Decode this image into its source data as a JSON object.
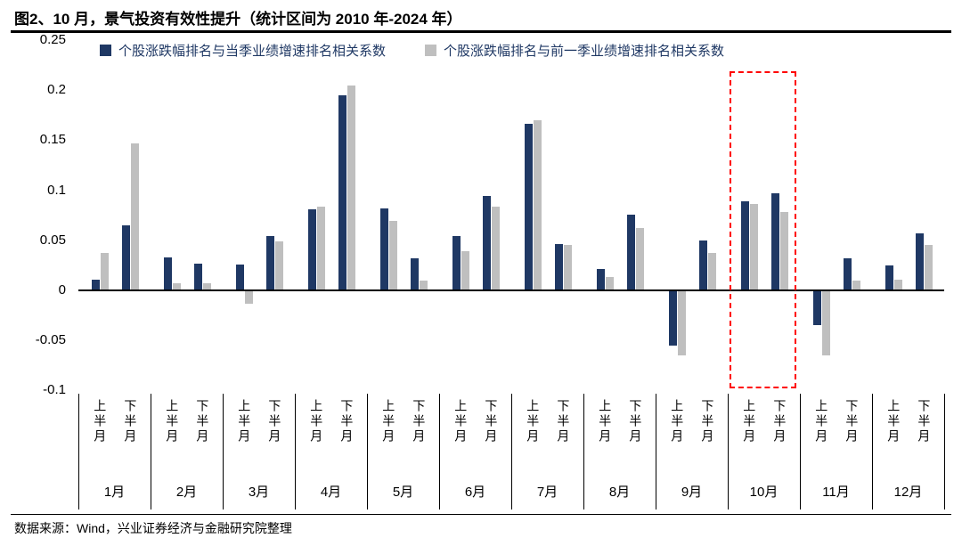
{
  "title": "图2、10 月，景气投资有效性提升（统计区间为 2010 年-2024 年）",
  "footer": {
    "source": "数据来源：Wind，兴业证券经济与金融研究院整理"
  },
  "colors": {
    "series_current": "#1F3864",
    "series_previous": "#BFBFBF",
    "highlight": "#FF0000",
    "axis": "#000000"
  },
  "chart_data": {
    "type": "bar",
    "title": "图2、10 月，景气投资有效性提升（统计区间为 2010 年-2024 年）",
    "months": [
      "1月",
      "2月",
      "3月",
      "4月",
      "5月",
      "6月",
      "7月",
      "8月",
      "9月",
      "10月",
      "11月",
      "12月"
    ],
    "half_labels": [
      "上半月",
      "下半月"
    ],
    "categories": [
      "1月上半月",
      "1月下半月",
      "2月上半月",
      "2月下半月",
      "3月上半月",
      "3月下半月",
      "4月上半月",
      "4月下半月",
      "5月上半月",
      "5月下半月",
      "6月上半月",
      "6月下半月",
      "7月上半月",
      "7月下半月",
      "8月上半月",
      "8月下半月",
      "9月上半月",
      "9月下半月",
      "10月上半月",
      "10月下半月",
      "11月上半月",
      "11月下半月",
      "12月上半月",
      "12月下半月"
    ],
    "series": [
      {
        "name": "个股涨跌幅排名与当季业绩增速排名相关系数",
        "color": "#1F3864",
        "values": [
          0.011,
          0.065,
          0.033,
          0.027,
          0.026,
          0.054,
          0.081,
          0.195,
          0.082,
          0.032,
          0.054,
          0.094,
          0.166,
          0.046,
          0.021,
          0.076,
          -0.055,
          0.05,
          0.089,
          0.097,
          -0.035,
          0.032,
          0.025,
          0.057
        ]
      },
      {
        "name": "个股涨跌幅排名与前一季业绩增速排名相关系数",
        "color": "#BFBFBF",
        "values": [
          0.037,
          0.147,
          0.007,
          0.007,
          -0.013,
          0.049,
          0.084,
          0.205,
          0.069,
          0.01,
          0.039,
          0.084,
          0.17,
          0.045,
          0.013,
          0.062,
          -0.065,
          0.037,
          0.086,
          0.078,
          -0.065,
          0.01,
          0.011,
          0.045
        ]
      }
    ],
    "ylim": [
      -0.1,
      0.25
    ],
    "yticks": [
      0.25,
      0.2,
      0.15,
      0.1,
      0.05,
      0,
      -0.05,
      -0.1
    ],
    "grid": false,
    "legend_position": "top",
    "highlight": {
      "month": "10月",
      "month_index": 9,
      "color": "#FF0000",
      "style": "dashed-box"
    }
  }
}
